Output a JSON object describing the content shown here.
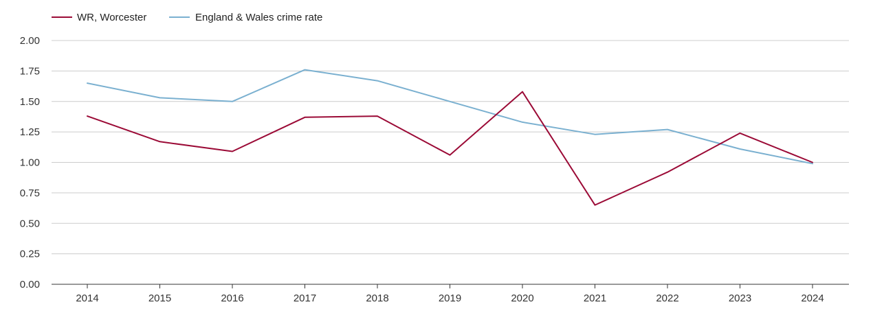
{
  "chart_data": {
    "type": "line",
    "x": [
      "2014",
      "2015",
      "2016",
      "2017",
      "2018",
      "2019",
      "2020",
      "2021",
      "2022",
      "2023",
      "2024"
    ],
    "ylim": [
      0,
      2
    ],
    "yticks": [
      "0.00",
      "0.25",
      "0.50",
      "0.75",
      "1.00",
      "1.25",
      "1.50",
      "1.75",
      "2.00"
    ],
    "grid": "horizontal",
    "legend": "top-left",
    "series": [
      {
        "name": "WR, Worcester",
        "color": "#9b0a36",
        "values": [
          1.38,
          1.17,
          1.09,
          1.37,
          1.38,
          1.06,
          1.58,
          0.65,
          0.92,
          1.24,
          1.0
        ]
      },
      {
        "name": "England & Wales crime rate",
        "color": "#7ab0d0",
        "values": [
          1.65,
          1.53,
          1.5,
          1.76,
          1.67,
          1.5,
          1.33,
          1.23,
          1.27,
          1.11,
          0.99
        ]
      }
    ]
  }
}
